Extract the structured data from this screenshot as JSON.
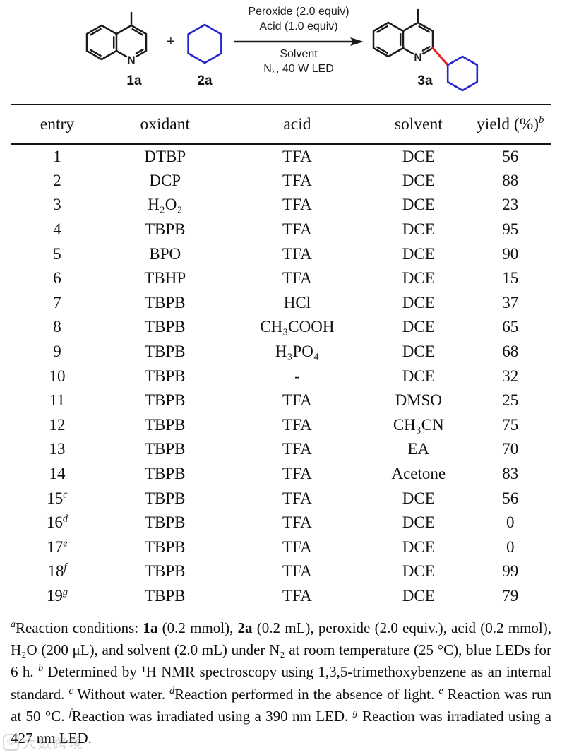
{
  "scheme": {
    "reactant1": {
      "label": "1a",
      "nitrogen": "N"
    },
    "plus": "+",
    "reactant2": {
      "label": "2a"
    },
    "product": {
      "label": "3a",
      "nitrogen": "N"
    },
    "conditions_above": [
      "Peroxide (2.0 equiv)",
      "Acid (1.0 equiv)"
    ],
    "conditions_below": [
      "Solvent",
      "N₂, 40 W LED"
    ],
    "colors": {
      "structure": "#1b1b1b",
      "cyclohexane": "#2424cf",
      "new_bond": "#e02020"
    }
  },
  "table": {
    "headers": [
      {
        "text": "entry",
        "mark": ""
      },
      {
        "text": "oxidant",
        "mark": ""
      },
      {
        "text": "acid",
        "mark": ""
      },
      {
        "text": "solvent",
        "mark": ""
      },
      {
        "text": "yield (%)",
        "mark": "b"
      }
    ],
    "rows": [
      {
        "entry": "1",
        "mark": "",
        "oxidant": "DTBP",
        "acid": "TFA",
        "solvent": "DCE",
        "yield": "56"
      },
      {
        "entry": "2",
        "mark": "",
        "oxidant": "DCP",
        "acid": "TFA",
        "solvent": "DCE",
        "yield": "88"
      },
      {
        "entry": "3",
        "mark": "",
        "oxidant": "H₂O₂",
        "acid": "TFA",
        "solvent": "DCE",
        "yield": "23"
      },
      {
        "entry": "4",
        "mark": "",
        "oxidant": "TBPB",
        "acid": "TFA",
        "solvent": "DCE",
        "yield": "95"
      },
      {
        "entry": "5",
        "mark": "",
        "oxidant": "BPO",
        "acid": "TFA",
        "solvent": "DCE",
        "yield": "90"
      },
      {
        "entry": "6",
        "mark": "",
        "oxidant": "TBHP",
        "acid": "TFA",
        "solvent": "DCE",
        "yield": "15"
      },
      {
        "entry": "7",
        "mark": "",
        "oxidant": "TBPB",
        "acid": "HCl",
        "solvent": "DCE",
        "yield": "37"
      },
      {
        "entry": "8",
        "mark": "",
        "oxidant": "TBPB",
        "acid": "CH₃COOH",
        "solvent": "DCE",
        "yield": "65"
      },
      {
        "entry": "9",
        "mark": "",
        "oxidant": "TBPB",
        "acid": "H₃PO₄",
        "solvent": "DCE",
        "yield": "68"
      },
      {
        "entry": "10",
        "mark": "",
        "oxidant": "TBPB",
        "acid": "-",
        "solvent": "DCE",
        "yield": "32"
      },
      {
        "entry": "11",
        "mark": "",
        "oxidant": "TBPB",
        "acid": "TFA",
        "solvent": "DMSO",
        "yield": "25"
      },
      {
        "entry": "12",
        "mark": "",
        "oxidant": "TBPB",
        "acid": "TFA",
        "solvent": "CH₃CN",
        "yield": "75"
      },
      {
        "entry": "13",
        "mark": "",
        "oxidant": "TBPB",
        "acid": "TFA",
        "solvent": "EA",
        "yield": "70"
      },
      {
        "entry": "14",
        "mark": "",
        "oxidant": "TBPB",
        "acid": "TFA",
        "solvent": "Acetone",
        "yield": "83"
      },
      {
        "entry": "15",
        "mark": "c",
        "oxidant": "TBPB",
        "acid": "TFA",
        "solvent": "DCE",
        "yield": "56"
      },
      {
        "entry": "16",
        "mark": "d",
        "oxidant": "TBPB",
        "acid": "TFA",
        "solvent": "DCE",
        "yield": "0"
      },
      {
        "entry": "17",
        "mark": "e",
        "oxidant": "TBPB",
        "acid": "TFA",
        "solvent": "DCE",
        "yield": "0"
      },
      {
        "entry": "18",
        "mark": "f",
        "oxidant": "TBPB",
        "acid": "TFA",
        "solvent": "DCE",
        "yield": "99"
      },
      {
        "entry": "19",
        "mark": "g",
        "oxidant": "TBPB",
        "acid": "TFA",
        "solvent": "DCE",
        "yield": "79"
      }
    ]
  },
  "footnote": {
    "segments": [
      {
        "t": "a",
        "s": "supi"
      },
      {
        "t": "Reaction conditions: "
      },
      {
        "t": "1a",
        "s": "b"
      },
      {
        "t": " (0.2 mmol), "
      },
      {
        "t": "2a",
        "s": "b"
      },
      {
        "t": " (0.2 mL), peroxide (2.0 equiv.), acid (0.2 mmol), H₂O (200 μL), and solvent (2.0 mL) under N₂ at room temperature (25 °C), blue LEDs for 6 h. "
      },
      {
        "t": "b",
        "s": "supi"
      },
      {
        "t": " Determined by ¹H NMR spectroscopy using 1,3,5-trimethoxybenzene as an internal standard. "
      },
      {
        "t": "c",
        "s": "supi"
      },
      {
        "t": " Without water. "
      },
      {
        "t": "d",
        "s": "supi"
      },
      {
        "t": "Reaction performed in the absence of light. "
      },
      {
        "t": "e",
        "s": "supi"
      },
      {
        "t": " Reaction was run at 50 °C. "
      },
      {
        "t": "f",
        "s": "supi"
      },
      {
        "t": "Reaction was irradiated using a 390 nm LED. "
      },
      {
        "t": "g",
        "s": "supi"
      },
      {
        "t": " Reaction was irradiated using a 427 nm LED."
      }
    ]
  },
  "watermark": {
    "symbol": "©",
    "text": "大数跨境"
  }
}
